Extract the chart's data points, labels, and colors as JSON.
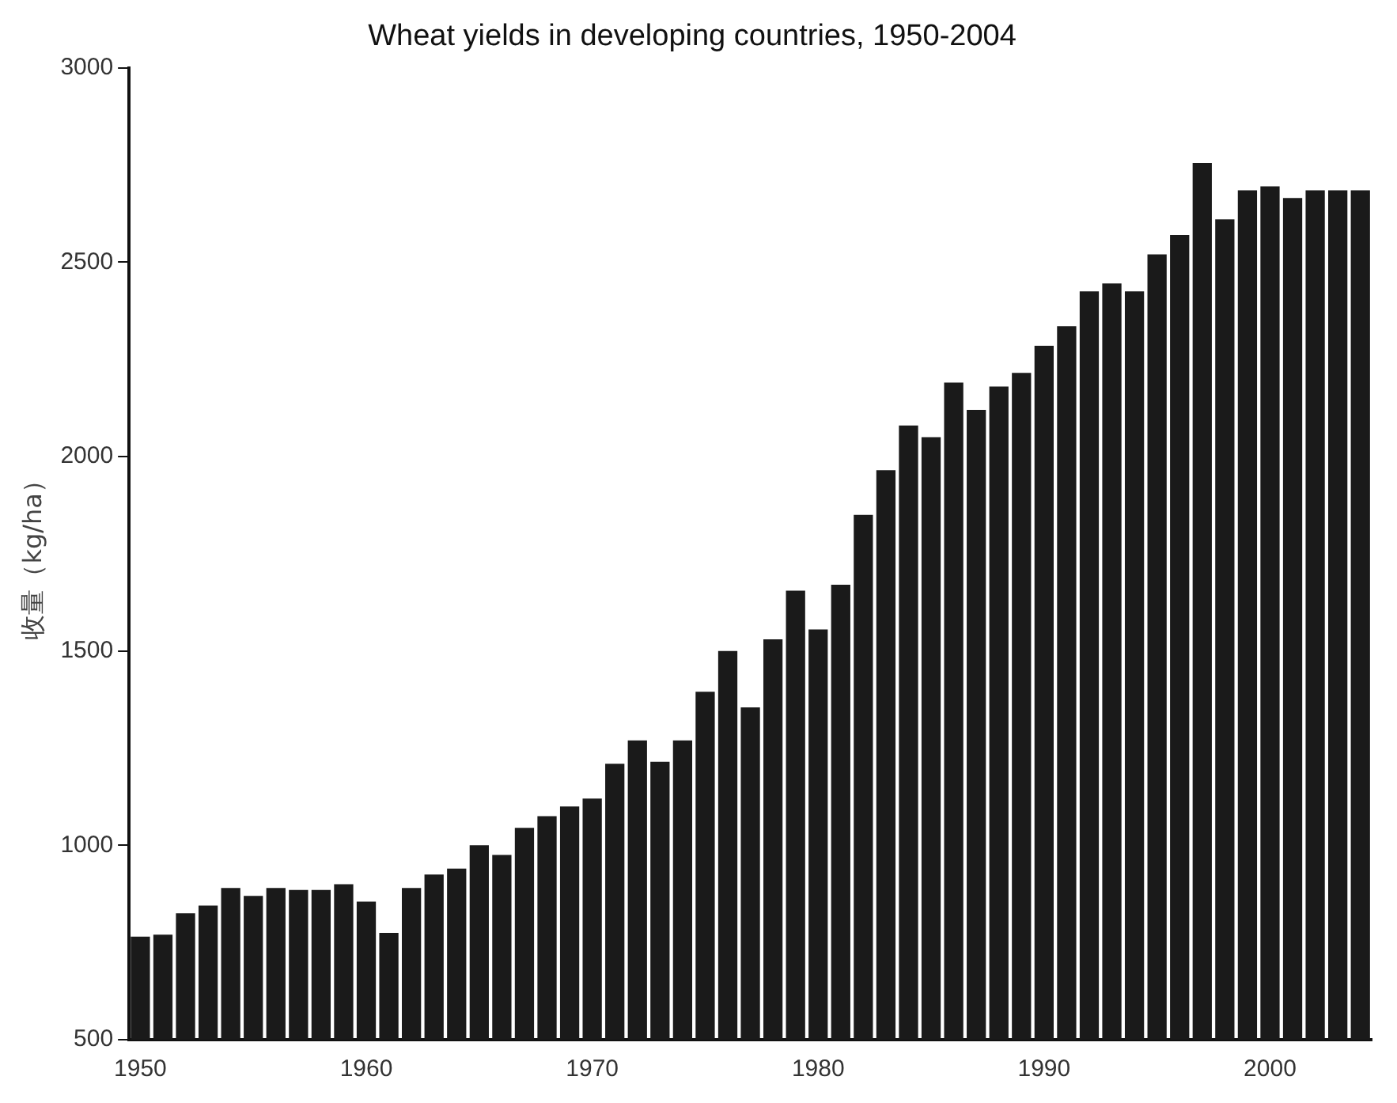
{
  "chart_data": {
    "type": "bar",
    "title": "Wheat yields in developing countries, 1950-2004",
    "ylabel": "收量（kg/ha）",
    "x": [
      1950,
      1951,
      1952,
      1953,
      1954,
      1955,
      1956,
      1957,
      1958,
      1959,
      1960,
      1961,
      1962,
      1963,
      1964,
      1965,
      1966,
      1967,
      1968,
      1969,
      1970,
      1971,
      1972,
      1973,
      1974,
      1975,
      1976,
      1977,
      1978,
      1979,
      1980,
      1981,
      1982,
      1983,
      1984,
      1985,
      1986,
      1987,
      1988,
      1989,
      1990,
      1991,
      1992,
      1993,
      1994,
      1995,
      1996,
      1997,
      1998,
      1999,
      2000,
      2001,
      2002,
      2003,
      2004
    ],
    "values": [
      765,
      770,
      825,
      845,
      890,
      870,
      890,
      885,
      885,
      900,
      855,
      775,
      890,
      925,
      940,
      1000,
      975,
      1045,
      1075,
      1100,
      1120,
      1210,
      1270,
      1215,
      1270,
      1395,
      1500,
      1355,
      1530,
      1655,
      1555,
      1670,
      1850,
      1965,
      2080,
      2050,
      2190,
      2120,
      2180,
      2215,
      2285,
      2335,
      2425,
      2445,
      2425,
      2520,
      2570,
      2755,
      2610,
      2685,
      2695,
      2665,
      2685,
      2685,
      2685
    ],
    "color": "#1a1a1a",
    "xlim": [
      1949.5,
      2004.5
    ],
    "xticks": [
      1950,
      1960,
      1970,
      1980,
      1990,
      2000
    ],
    "ylim": [
      500,
      3000
    ],
    "yticks": [
      500,
      1000,
      1500,
      2000,
      2500,
      3000
    ],
    "grid": false,
    "legend": false
  }
}
